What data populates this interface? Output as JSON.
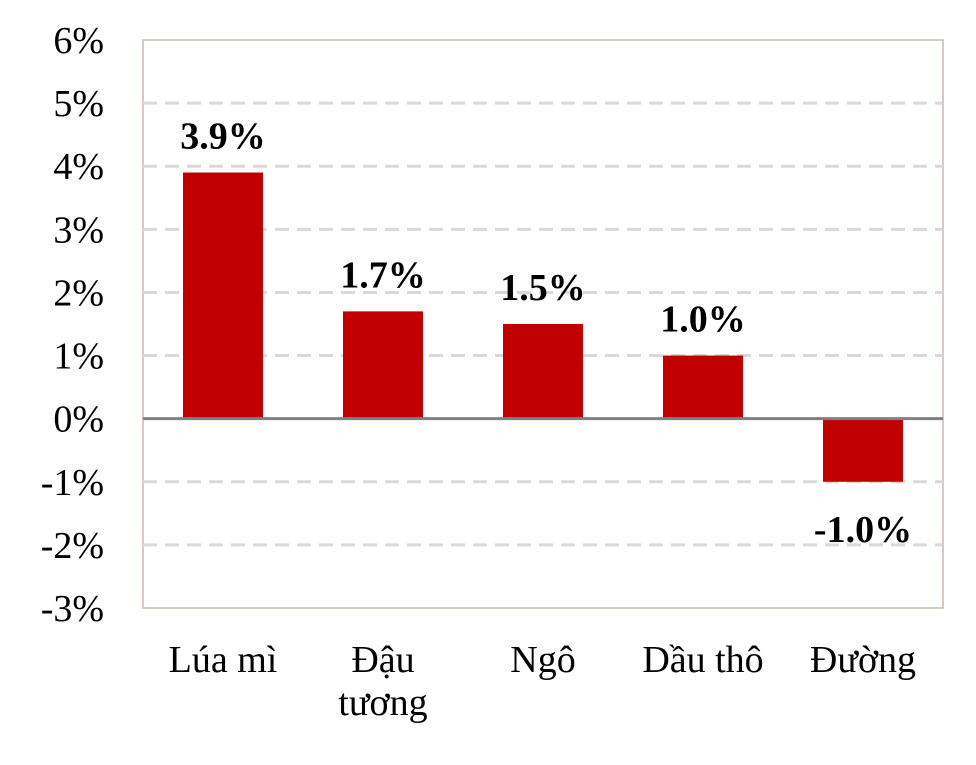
{
  "chart_data": {
    "type": "bar",
    "title": "",
    "xlabel": "",
    "ylabel": "",
    "categories": [
      [
        "Lúa mì"
      ],
      [
        "Đậu",
        "tương"
      ],
      [
        "Ngô"
      ],
      [
        "Dầu thô"
      ],
      [
        "Đường"
      ]
    ],
    "values": [
      3.9,
      1.7,
      1.5,
      1.0,
      -1.0
    ],
    "data_labels": [
      "3.9%",
      "1.7%",
      "1.5%",
      "1.0%",
      "-1.0%"
    ],
    "ylim": [
      -3,
      6
    ],
    "yticks": [
      6,
      5,
      4,
      3,
      2,
      1,
      0,
      -1,
      -2,
      -3
    ],
    "ytick_labels": [
      "6%",
      "5%",
      "4%",
      "3%",
      "2%",
      "1%",
      "0%",
      "-1%",
      "-2%",
      "-3%"
    ],
    "grid": true,
    "legend": "none",
    "bar_color": "#c00000"
  }
}
